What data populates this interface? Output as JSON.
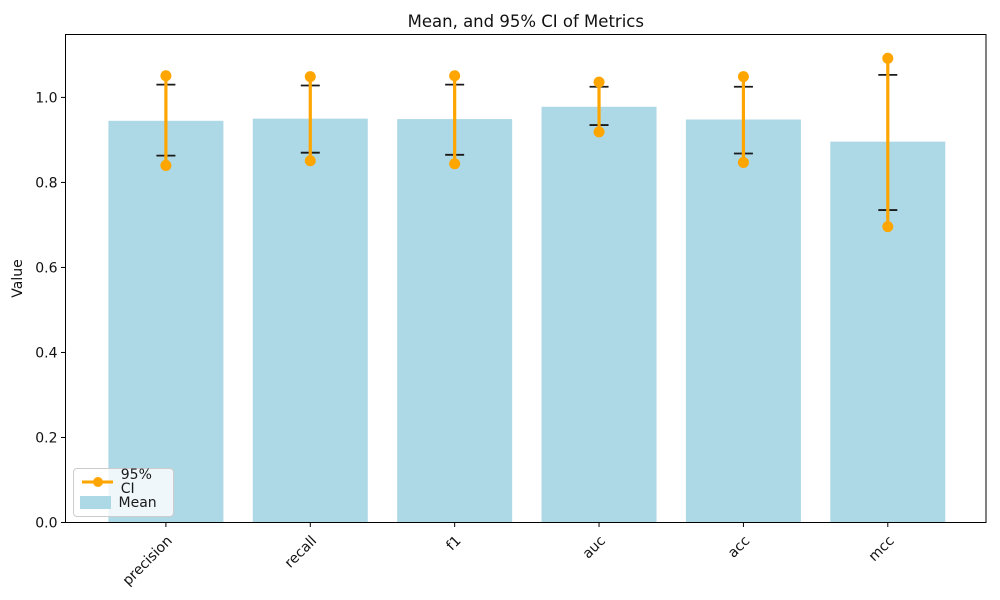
{
  "figure": {
    "title": "Mean, and 95% CI of Metrics",
    "ylabel": "Value"
  },
  "legend": {
    "entries": [
      {
        "label": "95% CI",
        "type": "line-marker",
        "color": "#FFA500"
      },
      {
        "label": "Mean",
        "type": "patch",
        "color": "#ADD8E6"
      }
    ],
    "position": "lower left"
  },
  "chart_data": {
    "type": "bar",
    "title": "Mean, and 95% CI of Metrics",
    "xlabel": "",
    "ylabel": "Value",
    "categories": [
      "precision",
      "recall",
      "f1",
      "auc",
      "acc",
      "mcc"
    ],
    "series": [
      {
        "name": "Mean",
        "type": "bar",
        "color": "#ADD8E6",
        "values": [
          0.945,
          0.95,
          0.949,
          0.978,
          0.948,
          0.896
        ]
      },
      {
        "name": "95% CI",
        "type": "errorline",
        "color": "#FFA500",
        "low": [
          0.84,
          0.851,
          0.844,
          0.919,
          0.847,
          0.696
        ],
        "high": [
          1.051,
          1.049,
          1.051,
          1.036,
          1.049,
          1.092
        ]
      }
    ],
    "error_caps": {
      "color": "#1a1a1a",
      "low": [
        0.863,
        0.87,
        0.865,
        0.935,
        0.868,
        0.735
      ],
      "high": [
        1.03,
        1.028,
        1.03,
        1.025,
        1.025,
        1.053
      ]
    },
    "yticks": [
      0.0,
      0.2,
      0.4,
      0.6,
      0.8,
      1.0
    ],
    "ytick_labels": [
      "0.0",
      "0.2",
      "0.4",
      "0.6",
      "0.8",
      "1.0"
    ],
    "ylim": [
      0,
      1.148
    ],
    "xtick_rotation": 45,
    "grid": false,
    "legend_position": "lower left",
    "spine_color": "#000000",
    "background": "#ffffff"
  }
}
